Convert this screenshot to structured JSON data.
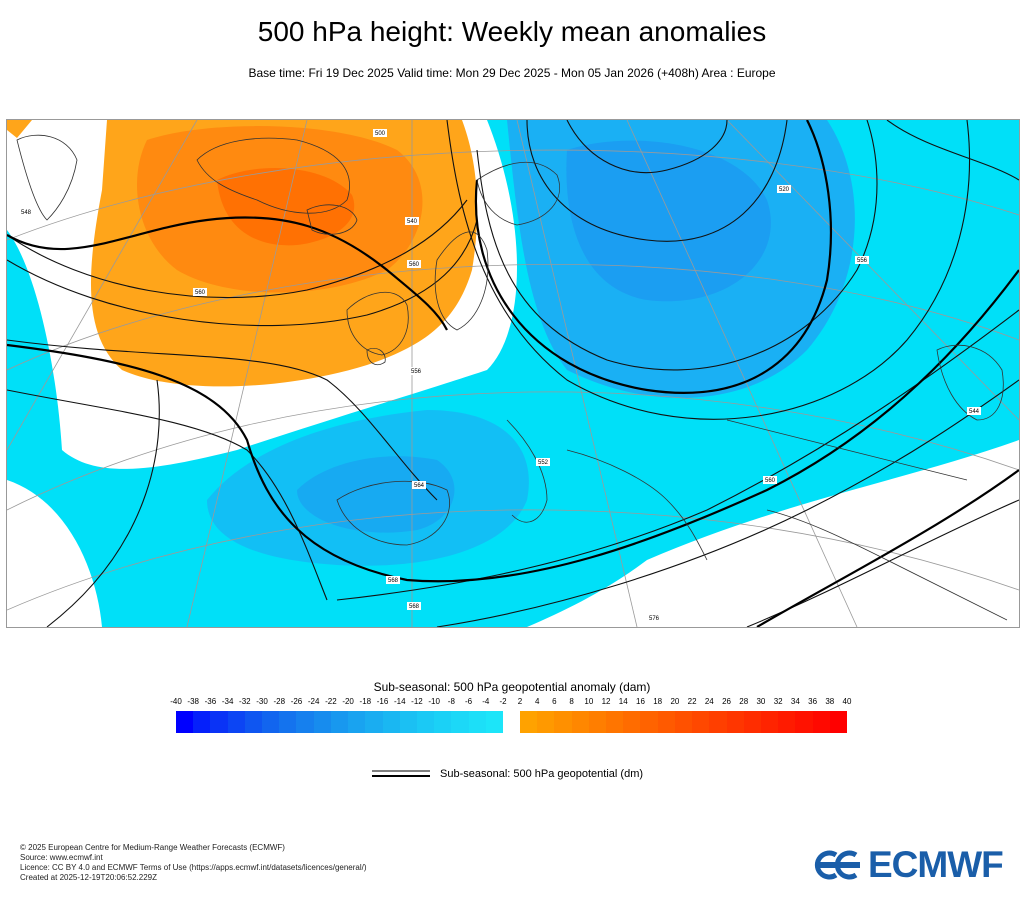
{
  "header": {
    "title": "500 hPa height: Weekly mean anomalies",
    "subtitle": "Base time: Fri 19 Dec 2025 Valid time: Mon 29 Dec 2025 - Mon 05 Jan 2026 (+408h) Area : Europe"
  },
  "map": {
    "contour_labels": [
      "500",
      "540",
      "560",
      "560",
      "556",
      "564",
      "568",
      "552",
      "560",
      "568",
      "576",
      "520",
      "556",
      "544",
      "548"
    ]
  },
  "colorbar": {
    "title": "Sub-seasonal: 500 hPa geopotential anomaly (dam)",
    "ticks": [
      "-40",
      "-38",
      "-36",
      "-34",
      "-32",
      "-30",
      "-28",
      "-26",
      "-24",
      "-22",
      "-20",
      "-18",
      "-16",
      "-14",
      "-12",
      "-10",
      "-8",
      "-6",
      "-4",
      "-2",
      "2",
      "4",
      "6",
      "8",
      "10",
      "12",
      "14",
      "16",
      "18",
      "20",
      "22",
      "24",
      "26",
      "28",
      "30",
      "32",
      "34",
      "36",
      "38",
      "40"
    ],
    "negative_colors": [
      "#0000ff",
      "#0520fb",
      "#0a33f6",
      "#0c45f4",
      "#0f56f1",
      "#1265ef",
      "#1473ee",
      "#1680ee",
      "#178cee",
      "#1898ef",
      "#19a3f0",
      "#1aadf1",
      "#1ab7f2",
      "#1bc0f3",
      "#1bc9f5",
      "#1bd1f6",
      "#1cd8f7",
      "#1cdff8",
      "#1ce5f9"
    ],
    "positive_colors": [
      "#ffa200",
      "#ff9900",
      "#ff9000",
      "#ff8700",
      "#ff7e00",
      "#ff7500",
      "#ff6c00",
      "#ff6300",
      "#ff5a00",
      "#ff5100",
      "#ff4800",
      "#ff3f00",
      "#ff3600",
      "#ff2d00",
      "#ff2400",
      "#ff1b00",
      "#ff1200",
      "#ff0900",
      "#ff0000"
    ]
  },
  "legend": {
    "line_label": "Sub-seasonal: 500 hPa geopotential (dm)"
  },
  "footer": {
    "lines": [
      "© 2025 European Centre for Medium-Range Weather Forecasts (ECMWF)",
      "Source: www.ecmwf.int",
      "Licence: CC BY 4.0 and ECMWF Terms of Use (https://apps.ecmwf.int/datasets/licences/general/)",
      "Created at 2025-12-19T20:06:52.229Z"
    ]
  },
  "logo": {
    "text": "ECMWF",
    "color": "#1a5ea9"
  },
  "colors": {
    "positive_anomaly_light": "#ffa51a",
    "positive_anomaly_dark": "#ff6a00",
    "negative_anomaly_light": "#00e0f8",
    "negative_anomaly_mid": "#1ab0f4",
    "negative_anomaly_dark": "#1e90f0"
  }
}
